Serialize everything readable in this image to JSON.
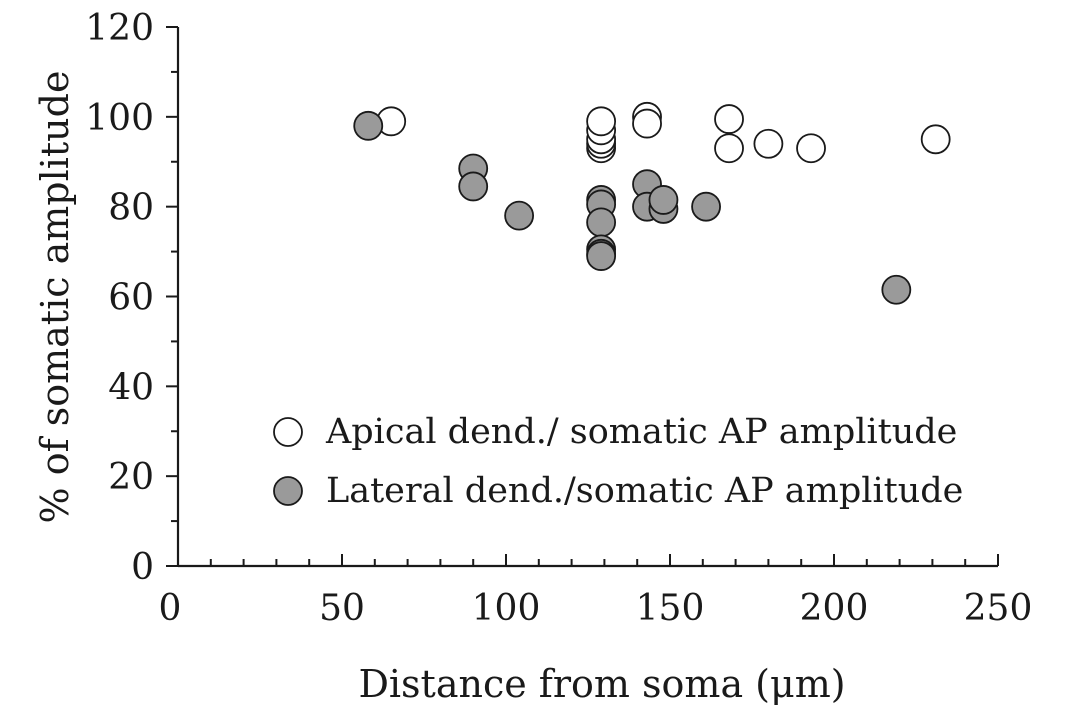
{
  "chart_data": {
    "type": "scatter",
    "title": "",
    "xlabel": "Distance from soma (μm)",
    "ylabel": "% of somatic amplitude",
    "xlim": [
      0,
      250
    ],
    "ylim": [
      0,
      120
    ],
    "xticks": [
      0,
      50,
      100,
      150,
      200,
      250
    ],
    "yticks": [
      0,
      20,
      40,
      60,
      80,
      100,
      120
    ],
    "x_minor_step": 10,
    "y_minor_step": 10,
    "grid": false,
    "legend_position": "lower-right",
    "series": [
      {
        "name": "Apical dend./ somatic AP amplitude",
        "fill": "#ffffff",
        "points": [
          {
            "x": 65,
            "y": 99
          },
          {
            "x": 129,
            "y": 93
          },
          {
            "x": 129,
            "y": 94
          },
          {
            "x": 129,
            "y": 95
          },
          {
            "x": 129,
            "y": 97
          },
          {
            "x": 129,
            "y": 99
          },
          {
            "x": 143,
            "y": 100
          },
          {
            "x": 143,
            "y": 98.5
          },
          {
            "x": 168,
            "y": 99.5
          },
          {
            "x": 168,
            "y": 93
          },
          {
            "x": 180,
            "y": 94
          },
          {
            "x": 193,
            "y": 93
          },
          {
            "x": 231,
            "y": 95
          }
        ]
      },
      {
        "name": "Lateral dend./somatic AP amplitude",
        "fill": "#9a9a9a",
        "points": [
          {
            "x": 58,
            "y": 98
          },
          {
            "x": 90,
            "y": 88.5
          },
          {
            "x": 90,
            "y": 84.5
          },
          {
            "x": 104,
            "y": 78
          },
          {
            "x": 129,
            "y": 81.5
          },
          {
            "x": 129,
            "y": 80.5
          },
          {
            "x": 129,
            "y": 76.5
          },
          {
            "x": 129,
            "y": 70.5
          },
          {
            "x": 129,
            "y": 69.5
          },
          {
            "x": 129,
            "y": 69
          },
          {
            "x": 143,
            "y": 85
          },
          {
            "x": 143,
            "y": 80
          },
          {
            "x": 148,
            "y": 79.5
          },
          {
            "x": 148,
            "y": 81.5
          },
          {
            "x": 161,
            "y": 80
          },
          {
            "x": 219,
            "y": 61.5
          }
        ]
      }
    ]
  }
}
